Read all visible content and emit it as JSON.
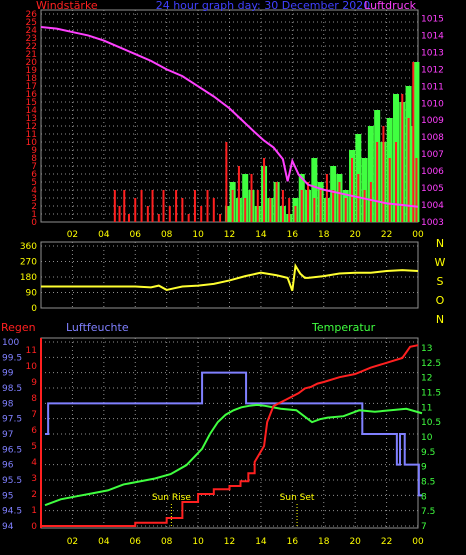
{
  "colors": {
    "background": "#000000",
    "wind": "#ff2020",
    "gust": "#40ff40",
    "pressure": "#ff40ff",
    "direction": "#ffff30",
    "humidity": "#8080ff",
    "temperature": "#40ff40",
    "rain": "#ff2020",
    "tick_yellow": "#ffff00",
    "header_blue": "#4040ff",
    "compass": "#ffff00",
    "grid": "#909090"
  },
  "chart_data": [
    {
      "type": "bar",
      "title": "24 hour graph day: 30 December 2020",
      "left_axis_title": "Windstärke",
      "right_axis_title": "Luftdruck",
      "x_ticks": [
        "02",
        "04",
        "06",
        "08",
        "10",
        "12",
        "14",
        "16",
        "18",
        "20",
        "22",
        "00"
      ],
      "y_left_ticks": [
        "0",
        "1",
        "2",
        "3",
        "4",
        "5",
        "6",
        "7",
        "8",
        "9",
        "10",
        "11",
        "12",
        "13",
        "14",
        "15",
        "16",
        "17",
        "18",
        "19",
        "20",
        "21",
        "22",
        "23",
        "24",
        "25",
        "26"
      ],
      "y_right_ticks": [
        "1003",
        "1004",
        "1005",
        "1006",
        "1007",
        "1008",
        "1009",
        "1010",
        "1011",
        "1012",
        "1013",
        "1014",
        "1015"
      ],
      "ylim_left": [
        0,
        26
      ],
      "ylim_right": [
        1003,
        1015.5
      ],
      "xlim": [
        0,
        24
      ],
      "series": [
        {
          "kind": "bars",
          "color_key": "gust",
          "x": [
            11.9,
            12.2,
            12.6,
            13,
            13.4,
            13.8,
            14.2,
            14.6,
            15,
            15.4,
            15.8,
            16.2,
            16.6,
            17,
            17.4,
            17.8,
            18.2,
            18.6,
            19,
            19.4,
            19.8,
            20.2,
            20.6,
            21,
            21.4,
            21.8,
            22.2,
            22.6,
            23,
            23.4,
            23.7,
            23.9
          ],
          "values": [
            2,
            5,
            3,
            6,
            4,
            2,
            7,
            3,
            5,
            2,
            1,
            3,
            6,
            4,
            8,
            5,
            3,
            7,
            6,
            4,
            9,
            11,
            8,
            12,
            14,
            10,
            13,
            16,
            15,
            17,
            12,
            20
          ]
        },
        {
          "kind": "bars",
          "color_key": "wind",
          "x": [
            4.7,
            5,
            5.3,
            5.6,
            6,
            6.4,
            6.8,
            7.1,
            7.5,
            7.8,
            8.2,
            8.6,
            9,
            9.4,
            9.8,
            10.2,
            10.6,
            11,
            11.4,
            11.8,
            12.2,
            12.6,
            13,
            13.4,
            13.8,
            14.2,
            14.6,
            15,
            15.4,
            15.8,
            16.2,
            16.6,
            17,
            17.4,
            17.8,
            18.2,
            18.6,
            19,
            19.4,
            19.8,
            20.2,
            20.6,
            21,
            21.4,
            21.8,
            22.2,
            22.6,
            23,
            23.4,
            23.7,
            23.9
          ],
          "values": [
            4,
            2,
            4,
            1,
            3,
            4,
            2,
            4,
            1,
            4,
            2,
            4,
            3,
            1,
            4,
            2,
            4,
            3,
            1,
            10,
            4,
            7,
            3,
            6,
            4,
            8,
            3,
            5,
            4,
            3,
            2,
            4,
            5,
            3,
            4,
            6,
            4,
            5,
            3,
            8,
            6,
            4,
            5,
            10,
            12,
            8,
            10,
            16,
            13,
            20,
            8
          ]
        },
        {
          "kind": "line",
          "color_key": "pressure",
          "axis": "right",
          "x": [
            0,
            1,
            2,
            3,
            4,
            5,
            6,
            7,
            8,
            9,
            10,
            11,
            12,
            12.8,
            13.6,
            14.2,
            14.8,
            15.4,
            15.7,
            16,
            16.4,
            17,
            18,
            19,
            20,
            21,
            22,
            23,
            24
          ],
          "values": [
            1014.5,
            1014.4,
            1014.2,
            1014.0,
            1013.7,
            1013.3,
            1012.9,
            1012.5,
            1012.0,
            1011.6,
            1011.0,
            1010.4,
            1009.7,
            1009.0,
            1008.3,
            1007.8,
            1007.4,
            1006.7,
            1005.4,
            1006.6,
            1005.8,
            1005.2,
            1004.9,
            1004.7,
            1004.5,
            1004.3,
            1004.1,
            1004.0,
            1003.9
          ]
        }
      ]
    },
    {
      "type": "line",
      "title": "",
      "y_ticks": [
        "0",
        "90",
        "180",
        "270",
        "360"
      ],
      "compass_labels": [
        "N",
        "W",
        "S",
        "O",
        "N"
      ],
      "ylim": [
        0,
        360
      ],
      "xlim": [
        0,
        24
      ],
      "series": [
        {
          "color_key": "direction",
          "x": [
            0,
            2,
            4,
            6,
            7,
            7.5,
            8,
            8.5,
            9,
            10,
            11,
            12,
            13,
            14,
            15,
            15.7,
            16,
            16.2,
            16.5,
            16.8,
            17,
            18,
            19,
            20,
            21,
            22,
            23,
            24
          ],
          "values": [
            125,
            125,
            125,
            125,
            120,
            130,
            105,
            115,
            125,
            130,
            140,
            160,
            185,
            205,
            190,
            175,
            100,
            245,
            200,
            175,
            175,
            185,
            200,
            205,
            205,
            215,
            220,
            215
          ]
        }
      ]
    },
    {
      "type": "line",
      "title": "",
      "left_axis_title": "Regen",
      "humidity_title": "Luftfeuchte",
      "temperature_title": "Temperatur",
      "x_ticks": [
        "02",
        "04",
        "06",
        "08",
        "10",
        "12",
        "14",
        "16",
        "18",
        "20",
        "22",
        "00"
      ],
      "humidity_ticks": [
        "94",
        "94.5",
        "95",
        "95.5",
        "96",
        "96.5",
        "97",
        "97.5",
        "98",
        "98.5",
        "99",
        "99.5",
        "100"
      ],
      "rain_ticks": [
        "0",
        "1",
        "2",
        "3",
        "4",
        "5",
        "6",
        "7",
        "8",
        "9",
        "10",
        "11"
      ],
      "temperature_ticks": [
        "7",
        "7.5",
        "8",
        "8.5",
        "9",
        "9.5",
        "10",
        "10.5",
        "11",
        "11.5",
        "12",
        "12.5",
        "13"
      ],
      "humidity_range": [
        94,
        100
      ],
      "rain_range": [
        0,
        11.5
      ],
      "temperature_range": [
        7,
        13.2
      ],
      "xlim": [
        0,
        24
      ],
      "annotations": [
        {
          "text": "Sun Rise",
          "x": 8.3
        },
        {
          "text": "Sun Set",
          "x": 16.3
        }
      ],
      "series": [
        {
          "name": "Luftfeuchte",
          "color_key": "humidity",
          "x": [
            0,
            0.2,
            0.2,
            10,
            10,
            12.8,
            12.8,
            20.2,
            20.2,
            22.4,
            22.4,
            22.6,
            22.6,
            22.9,
            22.9,
            23.4,
            23.4,
            23.8,
            23.8,
            24
          ],
          "values": [
            97,
            97,
            98,
            98,
            99,
            99,
            98,
            98,
            97,
            97,
            96,
            96,
            97,
            97,
            96,
            96,
            96,
            96,
            95,
            95
          ]
        },
        {
          "name": "Temperatur",
          "color_key": "temperature",
          "x": [
            0,
            1,
            2,
            3,
            4,
            5,
            6,
            7,
            8,
            9,
            10,
            10.5,
            11,
            11.5,
            12,
            12.5,
            13,
            13.5,
            14,
            14.5,
            15,
            16,
            17,
            17.5,
            18,
            19,
            20,
            21,
            22,
            23,
            24
          ],
          "values": [
            7.7,
            7.9,
            8.0,
            8.1,
            8.2,
            8.4,
            8.5,
            8.6,
            8.75,
            9.05,
            9.6,
            10.1,
            10.5,
            10.75,
            10.9,
            11.0,
            11.05,
            11.08,
            11.05,
            11.0,
            10.95,
            10.9,
            10.5,
            10.6,
            10.65,
            10.7,
            10.9,
            10.85,
            10.9,
            10.95,
            10.8
          ]
        },
        {
          "name": "Regen",
          "color_key": "rain",
          "x": [
            0,
            6,
            6,
            8,
            8,
            9,
            9,
            10,
            10,
            11,
            11,
            12,
            12,
            12.7,
            12.7,
            13.2,
            13.2,
            13.6,
            13.6,
            14.2,
            14.4,
            14.8,
            15.2,
            15.6,
            16,
            16.4,
            16.8,
            17.2,
            17.6,
            18,
            19,
            20,
            21,
            22,
            23,
            23.5,
            24
          ],
          "values": [
            0,
            0,
            0.2,
            0.2,
            0.5,
            0.5,
            1.5,
            1.5,
            2,
            2,
            2.3,
            2.3,
            2.5,
            2.5,
            2.8,
            2.8,
            3.3,
            3.3,
            4,
            5,
            6.5,
            7.5,
            7.7,
            7.9,
            8.1,
            8.3,
            8.6,
            8.7,
            8.9,
            9.0,
            9.3,
            9.5,
            9.9,
            10.2,
            10.5,
            11.2,
            11.3
          ]
        }
      ]
    }
  ]
}
